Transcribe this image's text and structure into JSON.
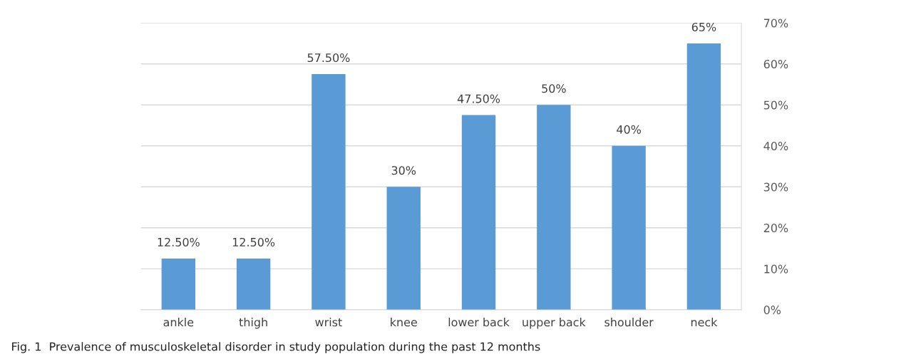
{
  "chart_data": {
    "type": "bar",
    "categories": [
      "ankle",
      "thigh",
      "wrist",
      "knee",
      "lower back",
      "upper back",
      "shoulder",
      "neck"
    ],
    "values": [
      12.5,
      12.5,
      57.5,
      30,
      47.5,
      50,
      40,
      65
    ],
    "value_labels": [
      "12.50%",
      "12.50%",
      "57.50%",
      "30%",
      "47.50%",
      "50%",
      "40%",
      "65%"
    ],
    "color": "#5b9bd5",
    "ylim": [
      0,
      70
    ],
    "yticks": [
      {
        "value": 0,
        "label": "0%"
      },
      {
        "value": 10,
        "label": "10%"
      },
      {
        "value": 20,
        "label": "20%"
      },
      {
        "value": 30,
        "label": "30%"
      },
      {
        "value": 40,
        "label": "40%"
      },
      {
        "value": 50,
        "label": "50%"
      },
      {
        "value": 60,
        "label": "60%"
      },
      {
        "value": 70,
        "label": "70%"
      }
    ],
    "grid": "y",
    "annotations": [
      "Fig. 1  Prevalence of musculoskeletal disorder in study population during the past 12 months"
    ]
  }
}
